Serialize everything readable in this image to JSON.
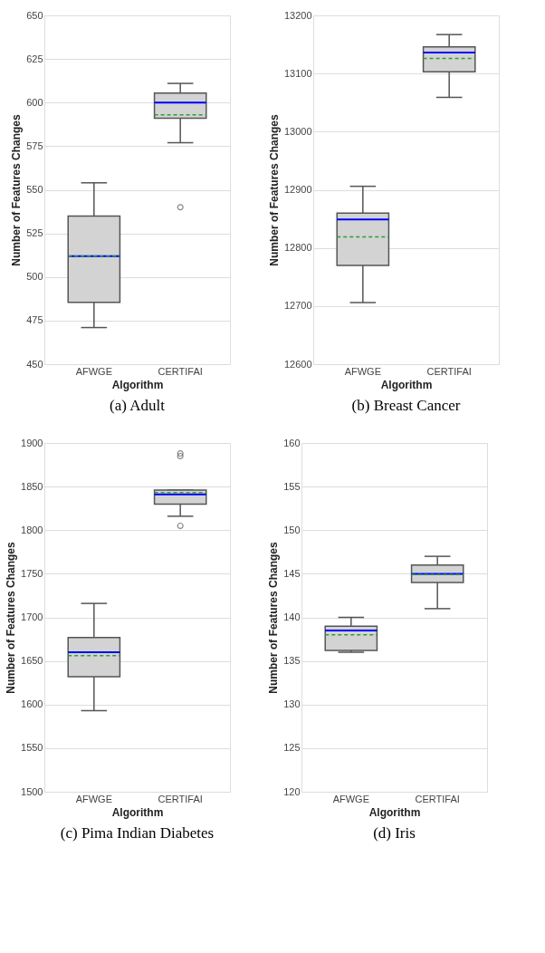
{
  "chart_data": [
    {
      "type": "box",
      "title": "(a) Adult",
      "xlabel": "Algorithm",
      "ylabel": "Number of Features Changes",
      "categories": [
        "AFWGE",
        "CERTIFAI"
      ],
      "ylim": [
        450,
        650
      ],
      "yticks": [
        450,
        475,
        500,
        525,
        550,
        575,
        600,
        625,
        650
      ],
      "grid": "y",
      "series": [
        {
          "color": "#d3d3d3",
          "boxes": [
            {
              "low": 471,
              "q1": 485.5,
              "median": 512,
              "q3": 535,
              "high": 554,
              "mean": 512
            },
            {
              "low": 577,
              "q1": 591,
              "median": 600,
              "q3": 605.5,
              "high": 611,
              "mean": 593,
              "outliers": [
                540
              ]
            }
          ]
        }
      ]
    },
    {
      "type": "box",
      "title": "(b) Breast Cancer",
      "xlabel": "Algorithm",
      "ylabel": "Number of Features Changes",
      "categories": [
        "AFWGE",
        "CERTIFAI"
      ],
      "ylim": [
        12600,
        13200
      ],
      "yticks": [
        12600,
        12700,
        12800,
        12900,
        13000,
        13100,
        13200
      ],
      "grid": "y",
      "series": [
        {
          "color": "#d3d3d3",
          "boxes": [
            {
              "low": 12706,
              "q1": 12770,
              "median": 12849,
              "q3": 12860,
              "high": 12906,
              "mean": 12819
            },
            {
              "low": 13059,
              "q1": 13103,
              "median": 13136,
              "q3": 13146,
              "high": 13167,
              "mean": 13126
            }
          ]
        }
      ]
    },
    {
      "type": "box",
      "title": "(c) Pima Indian Diabetes",
      "xlabel": "Algorithm",
      "ylabel": "Number of Features Changes",
      "categories": [
        "AFWGE",
        "CERTIFAI"
      ],
      "ylim": [
        1500,
        1900
      ],
      "yticks": [
        1500,
        1550,
        1600,
        1650,
        1700,
        1750,
        1800,
        1850,
        1900
      ],
      "grid": "y",
      "series": [
        {
          "color": "#d3d3d3",
          "boxes": [
            {
              "low": 1593,
              "q1": 1632,
              "median": 1660,
              "q3": 1677,
              "high": 1716,
              "mean": 1656
            },
            {
              "low": 1816,
              "q1": 1830,
              "median": 1841,
              "q3": 1846,
              "high": 1846,
              "mean": 1843,
              "outliers": [
                1805,
                1885,
                1888
              ]
            }
          ]
        }
      ]
    },
    {
      "type": "box",
      "title": "(d) Iris",
      "xlabel": "Algorithm",
      "ylabel": "Number of Features Changes",
      "categories": [
        "AFWGE",
        "CERTIFAI"
      ],
      "ylim": [
        120,
        160
      ],
      "yticks": [
        120,
        125,
        130,
        135,
        140,
        145,
        150,
        155,
        160
      ],
      "grid": "y",
      "series": [
        {
          "color": "#d3d3d3",
          "boxes": [
            {
              "low": 136,
              "q1": 136.2,
              "median": 138.5,
              "q3": 139,
              "high": 140,
              "mean": 138
            },
            {
              "low": 141,
              "q1": 144,
              "median": 145,
              "q3": 146,
              "high": 147,
              "mean": 144.9
            }
          ]
        }
      ]
    }
  ]
}
